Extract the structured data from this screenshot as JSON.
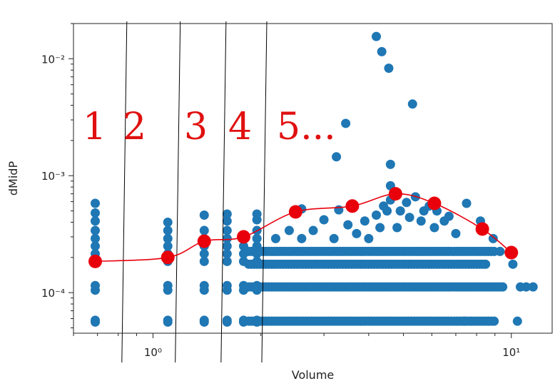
{
  "chart_data": {
    "type": "scatter",
    "xlabel": "Volume",
    "ylabel": "dMidP",
    "x_scale": "log",
    "y_scale": "log",
    "xlim": [
      0.6,
      13
    ],
    "ylim": [
      4.5e-05,
      0.02
    ],
    "x_ticks": [
      {
        "value": 1,
        "label": "10⁰"
      },
      {
        "value": 10,
        "label": "10¹"
      }
    ],
    "y_ticks": [
      {
        "value": 0.01,
        "label": "10⁻²"
      },
      {
        "value": 0.001,
        "label": "10⁻³"
      },
      {
        "value": 0.0001,
        "label": "10⁻⁴"
      }
    ],
    "grid": false,
    "colors": {
      "scatter": "#1f77b4",
      "summary": "#e8000b",
      "annotation": "#e01010",
      "divider": "#000000"
    },
    "series": [
      {
        "columns": [
          {
            "x": 0.69,
            "y": [
              5.6e-05,
              5.8e-05,
              0.000105,
              0.000115,
              0.000185,
              0.000215,
              0.00025,
              0.00029,
              0.00034,
              0.00041,
              0.00048,
              0.00058
            ]
          },
          {
            "x": 1.1,
            "y": [
              5.6e-05,
              5.8e-05,
              0.000105,
              0.000115,
              0.000185,
              0.000215,
              0.00025,
              0.00029,
              0.00034,
              0.0004
            ]
          },
          {
            "x": 1.39,
            "y": [
              5.6e-05,
              5.8e-05,
              0.000105,
              0.000115,
              0.000185,
              0.000215,
              0.00025,
              0.00029,
              0.00034,
              0.00046
            ]
          },
          {
            "x": 1.61,
            "y": [
              5.6e-05,
              5.8e-05,
              0.000105,
              0.000115,
              0.000185,
              0.000215,
              0.00025,
              0.00029,
              0.00034,
              0.00041,
              0.00047
            ]
          },
          {
            "x": 1.79,
            "y": [
              5.6e-05,
              5.8e-05,
              0.000105,
              0.000115,
              0.000185,
              0.000215,
              0.00025,
              0.00029
            ]
          },
          {
            "x": 1.95,
            "y": [
              5.6e-05,
              5.8e-05,
              0.000105,
              0.000115,
              0.000185,
              0.000215,
              0.00025,
              0.00029,
              0.00034,
              0.00042,
              0.00047
            ]
          }
        ],
        "bands": [
          {
            "y": 5.7e-05,
            "x_from": 1.85,
            "x_to": 9.0
          },
          {
            "y": 0.000112,
            "x_from": 1.85,
            "x_to": 9.6
          },
          {
            "y": 0.000175,
            "x_from": 1.85,
            "x_to": 8.6
          },
          {
            "y": 0.000225,
            "x_from": 1.85,
            "x_to": 9.0
          }
        ],
        "points": [
          [
            2.2,
            0.00029
          ],
          [
            2.4,
            0.00034
          ],
          [
            2.6,
            0.00029
          ],
          [
            2.8,
            0.00034
          ],
          [
            3.0,
            0.00042
          ],
          [
            3.2,
            0.00029
          ],
          [
            3.3,
            0.00051
          ],
          [
            3.5,
            0.00038
          ],
          [
            3.7,
            0.00032
          ],
          [
            3.9,
            0.00041
          ],
          [
            4.0,
            0.00029
          ],
          [
            4.2,
            0.00046
          ],
          [
            4.3,
            0.00036
          ],
          [
            4.4,
            0.00055
          ],
          [
            4.5,
            0.0005
          ],
          [
            4.6,
            0.00062
          ],
          [
            4.8,
            0.00036
          ],
          [
            4.9,
            0.0005
          ],
          [
            5.1,
            0.00059
          ],
          [
            5.2,
            0.00044
          ],
          [
            5.4,
            0.00066
          ],
          [
            5.6,
            0.00041
          ],
          [
            5.7,
            0.0005
          ],
          [
            5.9,
            0.00055
          ],
          [
            6.1,
            0.00036
          ],
          [
            6.2,
            0.0005
          ],
          [
            6.5,
            0.00041
          ],
          [
            6.7,
            0.00045
          ],
          [
            7.0,
            0.00032
          ],
          [
            7.5,
            0.00058
          ],
          [
            8.2,
            0.00041
          ],
          [
            8.9,
            0.00029
          ],
          [
            2.6,
            0.00052
          ],
          [
            3.6,
            0.00055
          ],
          [
            4.7,
            0.00072
          ],
          [
            3.25,
            0.00145
          ],
          [
            3.45,
            0.0028
          ],
          [
            4.2,
            0.0155
          ],
          [
            4.35,
            0.0115
          ],
          [
            4.55,
            0.0083
          ],
          [
            4.6,
            0.00125
          ],
          [
            4.6,
            0.00082
          ],
          [
            5.3,
            0.0041
          ],
          [
            10.6,
            0.000112
          ],
          [
            11.0,
            0.000112
          ],
          [
            11.5,
            0.000112
          ],
          [
            10.1,
            0.000175
          ],
          [
            10.4,
            5.7e-05
          ],
          [
            7.4,
            5.7e-05
          ],
          [
            9.3,
            0.000225
          ]
        ]
      },
      {
        "x": [
          0.69,
          1.1,
          1.39,
          1.79,
          2.5,
          3.6,
          4.75,
          6.1,
          8.3,
          10.0
        ],
        "y": [
          0.000185,
          0.0002,
          0.000275,
          0.0003,
          0.00049,
          0.00055,
          0.0007,
          0.00058,
          0.00035,
          0.00022
        ]
      }
    ],
    "dividers_x": [
      0.83,
      1.17,
      1.57,
      2.04
    ],
    "annotations": [
      "1",
      "2",
      "3",
      "4",
      "5..."
    ]
  }
}
